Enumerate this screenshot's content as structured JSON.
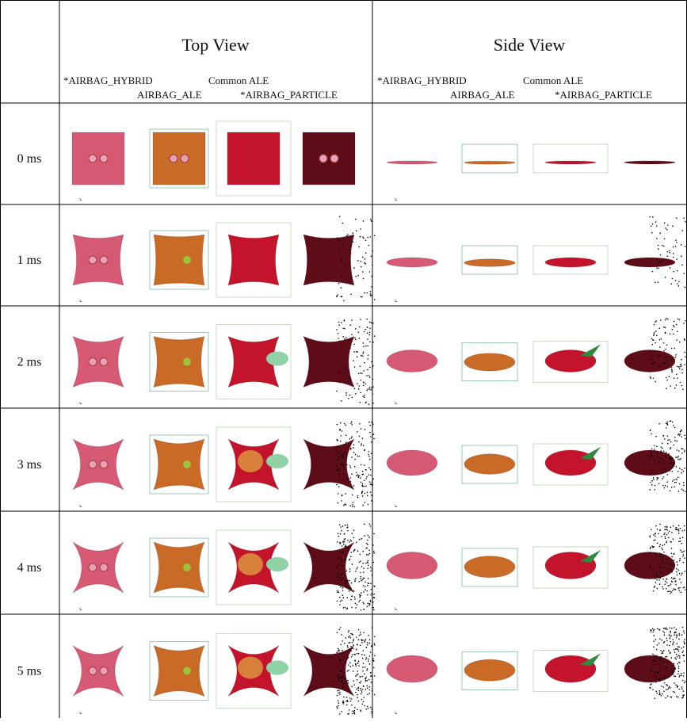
{
  "header": {
    "columns": [
      {
        "title": "Top View",
        "labels": [
          "*AIRBAG_HYBRID",
          "AIRBAG_ALE",
          "Common ALE",
          "*AIRBAG_PARTICLE"
        ]
      },
      {
        "title": "Side View",
        "labels": [
          "*AIRBAG_HYBRID",
          "AIRBAG_ALE",
          "Common ALE",
          "*AIRBAG_PARTICLE"
        ]
      }
    ]
  },
  "rows": [
    "0 ms",
    "1 ms",
    "2 ms",
    "3 ms",
    "4 ms",
    "5 ms"
  ]
}
